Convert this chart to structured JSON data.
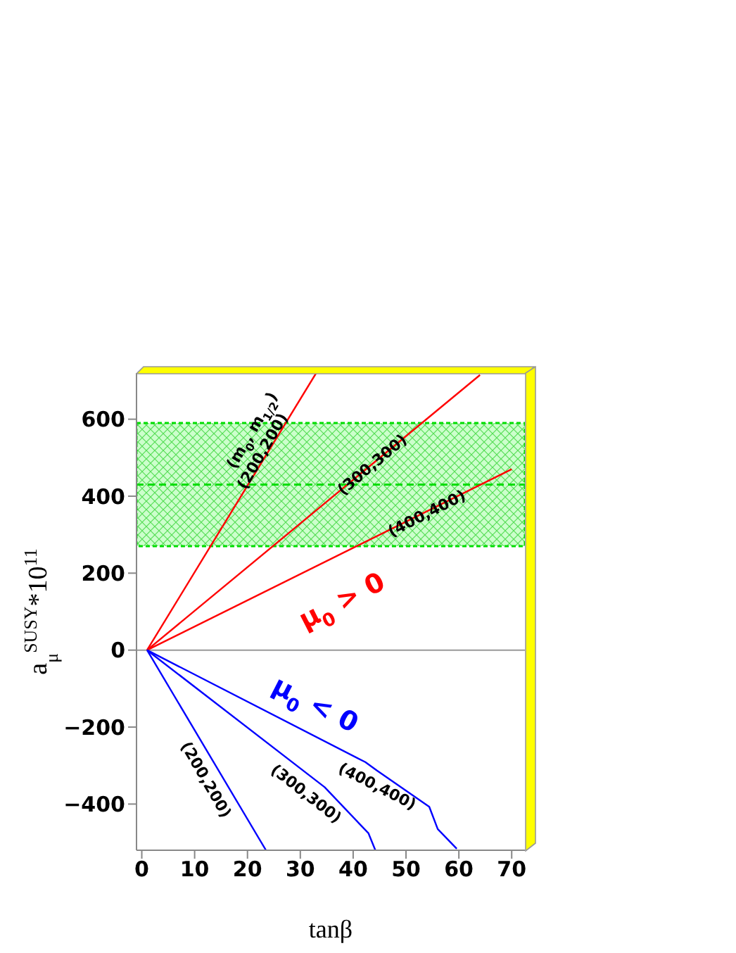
{
  "chart_data": {
    "type": "line",
    "xlabel": "tanβ",
    "ylabel": "a$_{μ}$$^{SUSY}$*10$^{11}$",
    "xlim": [
      -1,
      72.5
    ],
    "xticks": [
      0,
      10,
      20,
      30,
      40,
      50,
      60,
      70
    ],
    "ylim": [
      -520,
      720
    ],
    "yticks": [
      -400,
      -200,
      0,
      200,
      400,
      600
    ],
    "marker": "none",
    "line_style": "solid",
    "series": [
      {
        "color": "#ff0000",
        "x": [
          1,
          33
        ],
        "values": [
          0,
          720
        ]
      },
      {
        "color": "#ff0000",
        "x": [
          1,
          64
        ],
        "values": [
          0,
          715
        ]
      },
      {
        "color": "#ff0000",
        "x": [
          1,
          70
        ],
        "values": [
          0,
          470
        ]
      },
      {
        "color": "#0000ff",
        "x": [
          1,
          23.5
        ],
        "values": [
          0,
          -520
        ]
      },
      {
        "color": "#0000ff",
        "x": [
          1,
          34.6,
          42.9,
          44.2
        ],
        "values": [
          0,
          -356,
          -476,
          -520
        ]
      },
      {
        "color": "#0000ff",
        "x": [
          1,
          42.3,
          44.5,
          54.4,
          56,
          59.6
        ],
        "values": [
          0,
          -291,
          -313,
          -407,
          -465,
          -516
        ]
      }
    ],
    "bands": [
      {
        "axis": "y",
        "from": 270,
        "to": 590,
        "color": "#00dd00"
      }
    ],
    "ref_lines": [
      {
        "axis": "y",
        "value": 430,
        "color": "#00dd00",
        "line_style": "dashed"
      },
      {
        "axis": "y",
        "value": 0,
        "color": "#999999",
        "line_style": "solid"
      }
    ],
    "annotations": [
      {
        "text": "(m$_{0}$, m$_{1/2}$)",
        "x": 21,
        "y": 570
      },
      {
        "text": "(200,200)",
        "x": 23,
        "y": 516
      },
      {
        "text": "(300,300)",
        "x": 43.7,
        "y": 480
      },
      {
        "text": "(400,400)",
        "x": 54,
        "y": 353
      },
      "μ$_{0}$ > 0",
      "μ$_{0}$ < 0",
      "(200,200)",
      "(300,300)",
      "(400,400)"
    ]
  }
}
